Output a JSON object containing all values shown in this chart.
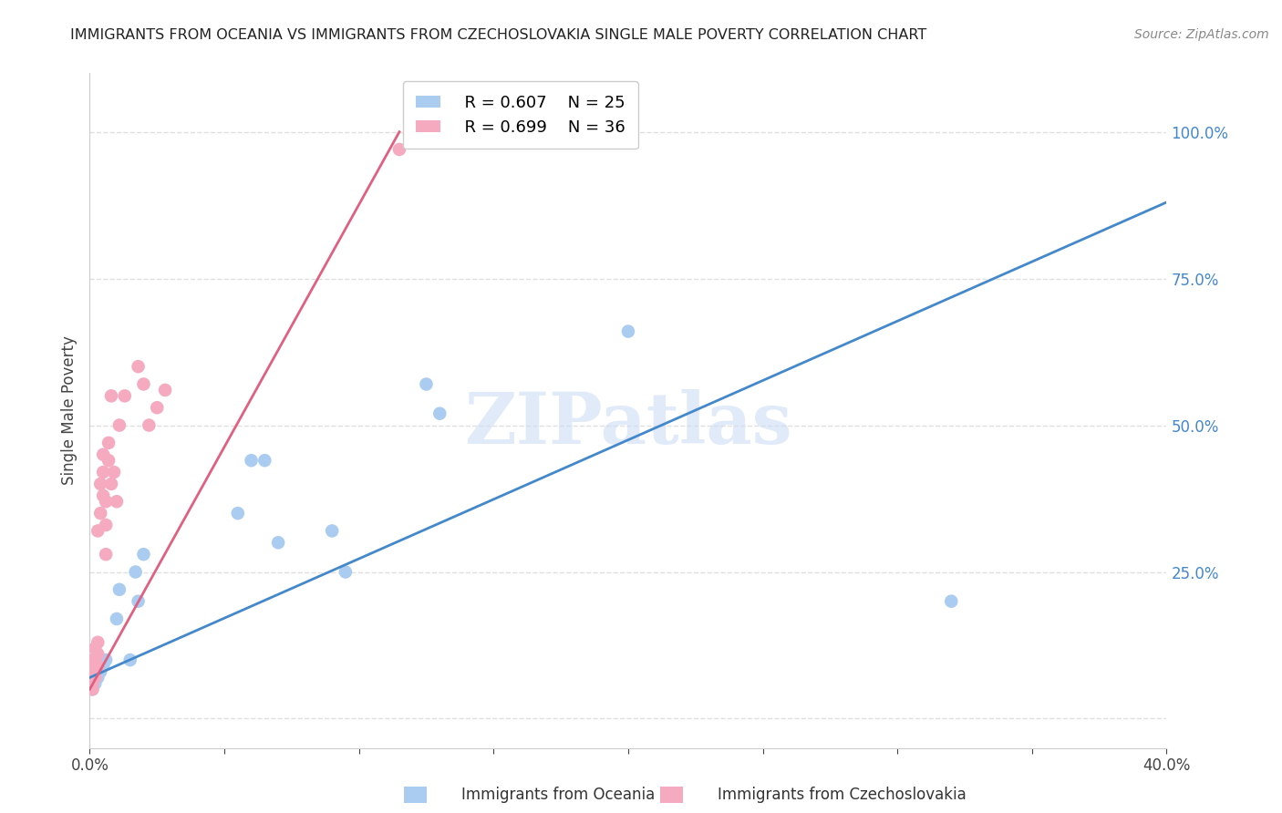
{
  "title": "IMMIGRANTS FROM OCEANIA VS IMMIGRANTS FROM CZECHOSLOVAKIA SINGLE MALE POVERTY CORRELATION CHART",
  "source": "Source: ZipAtlas.com",
  "ylabel": "Single Male Poverty",
  "xlim": [
    0.0,
    0.4
  ],
  "ylim": [
    -0.05,
    1.1
  ],
  "xticks": [
    0.0,
    0.05,
    0.1,
    0.15,
    0.2,
    0.25,
    0.3,
    0.35,
    0.4
  ],
  "xticklabels": [
    "0.0%",
    "",
    "",
    "",
    "",
    "",
    "",
    "",
    "40.0%"
  ],
  "yticks_right": [
    0.0,
    0.25,
    0.5,
    0.75,
    1.0
  ],
  "yticklabels_right": [
    "",
    "25.0%",
    "50.0%",
    "75.0%",
    "100.0%"
  ],
  "grid_color": "#e0e0e0",
  "background_color": "#ffffff",
  "oceania_color": "#aaccf0",
  "czechoslovakia_color": "#f5aac0",
  "trendline_oceania_color": "#4488cc",
  "trendline_czechoslovakia_color": "#e06080",
  "legend_oceania_R": "R = 0.607",
  "legend_oceania_N": "N = 25",
  "legend_czechoslovakia_R": "R = 0.699",
  "legend_czechoslovakia_N": "N = 36",
  "watermark": "ZIPatlas",
  "oceania_x": [
    0.001,
    0.001,
    0.002,
    0.002,
    0.003,
    0.004,
    0.004,
    0.005,
    0.006,
    0.01,
    0.011,
    0.015,
    0.017,
    0.018,
    0.02,
    0.055,
    0.06,
    0.065,
    0.07,
    0.09,
    0.095,
    0.125,
    0.13,
    0.2,
    0.32
  ],
  "oceania_y": [
    0.05,
    0.07,
    0.06,
    0.08,
    0.07,
    0.08,
    0.1,
    0.09,
    0.1,
    0.17,
    0.22,
    0.1,
    0.25,
    0.2,
    0.28,
    0.35,
    0.44,
    0.44,
    0.3,
    0.32,
    0.25,
    0.57,
    0.52,
    0.66,
    0.2
  ],
  "czechoslovakia_x": [
    0.001,
    0.001,
    0.001,
    0.001,
    0.001,
    0.002,
    0.002,
    0.002,
    0.002,
    0.002,
    0.003,
    0.003,
    0.003,
    0.003,
    0.004,
    0.004,
    0.005,
    0.005,
    0.005,
    0.006,
    0.006,
    0.006,
    0.007,
    0.007,
    0.008,
    0.008,
    0.009,
    0.01,
    0.011,
    0.013,
    0.018,
    0.02,
    0.022,
    0.025,
    0.028,
    0.115
  ],
  "czechoslovakia_y": [
    0.05,
    0.06,
    0.07,
    0.08,
    0.1,
    0.07,
    0.08,
    0.09,
    0.1,
    0.12,
    0.09,
    0.11,
    0.13,
    0.32,
    0.35,
    0.4,
    0.38,
    0.42,
    0.45,
    0.28,
    0.33,
    0.37,
    0.44,
    0.47,
    0.4,
    0.55,
    0.42,
    0.37,
    0.5,
    0.55,
    0.6,
    0.57,
    0.5,
    0.53,
    0.56,
    0.97
  ],
  "trendline_oceania_x0": 0.0,
  "trendline_oceania_y0": 0.07,
  "trendline_oceania_x1": 0.4,
  "trendline_oceania_y1": 0.88,
  "trendline_czechoslovakia_x0": 0.0,
  "trendline_czechoslovakia_y0": 0.05,
  "trendline_czechoslovakia_x1": 0.115,
  "trendline_czechoslovakia_y1": 1.0
}
